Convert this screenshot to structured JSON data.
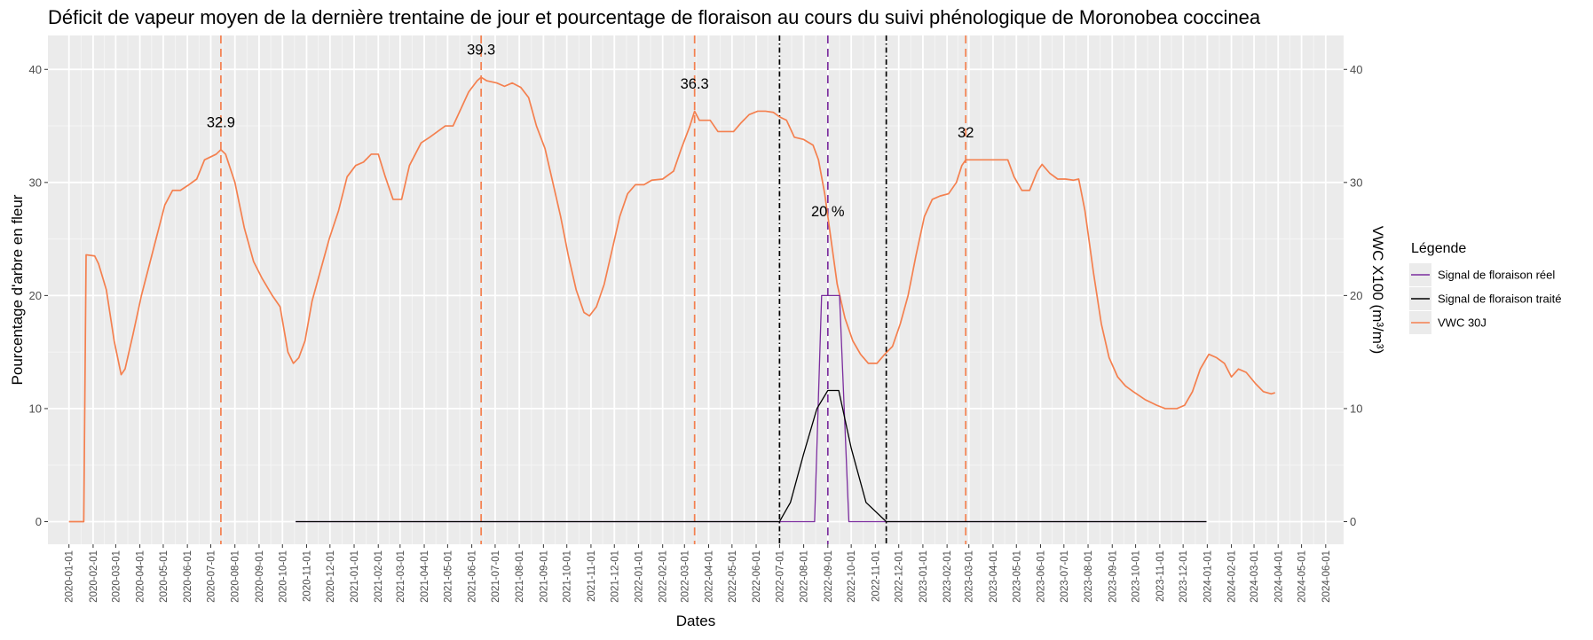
{
  "chart_data": {
    "type": "line",
    "title": "Déficit de vapeur moyen de la dernière trentaine de jour et pourcentage de floraison au cours du suivi phénologique de Moronobea coccinea",
    "xlabel": "Dates",
    "ylabel": "Pourcentage d'arbre en fleur",
    "ylabel_right": "VWC X100 (m³/m³)",
    "x_ticks": [
      "2020-01-01",
      "2020-02-01",
      "2020-03-01",
      "2020-04-01",
      "2020-05-01",
      "2020-06-01",
      "2020-07-01",
      "2020-08-01",
      "2020-09-01",
      "2020-10-01",
      "2020-11-01",
      "2020-12-01",
      "2021-01-01",
      "2021-02-01",
      "2021-03-01",
      "2021-04-01",
      "2021-05-01",
      "2021-06-01",
      "2021-07-01",
      "2021-08-01",
      "2021-09-01",
      "2021-10-01",
      "2021-11-01",
      "2021-12-01",
      "2022-01-01",
      "2022-02-01",
      "2022-03-01",
      "2022-04-01",
      "2022-05-01",
      "2022-06-01",
      "2022-07-01",
      "2022-08-01",
      "2022-09-01",
      "2022-10-01",
      "2022-11-01",
      "2022-12-01",
      "2023-01-01",
      "2023-02-01",
      "2023-03-01",
      "2023-04-01",
      "2023-05-01",
      "2023-06-01",
      "2023-07-01",
      "2023-08-01",
      "2023-09-01",
      "2023-10-01",
      "2023-11-01",
      "2023-12-01",
      "2024-01-01",
      "2024-02-01",
      "2024-03-01",
      "2024-04-01",
      "2024-05-01",
      "2024-06-01"
    ],
    "xlim": [
      "2019-12-05",
      "2024-06-24"
    ],
    "ylim": [
      -2,
      43
    ],
    "y_ticks": [
      0,
      10,
      20,
      30,
      40
    ],
    "y_right_ticks": [
      0,
      10,
      20,
      30,
      40
    ],
    "grid": true,
    "legend": {
      "title": "Légende",
      "position": "right",
      "entries": [
        {
          "name": "Signal de floraison réel",
          "color": "#7b2d9e"
        },
        {
          "name": "Signal de floraison traité",
          "color": "#000000"
        },
        {
          "name": "VWC 30J",
          "color": "#f4804f"
        }
      ]
    },
    "series": [
      {
        "name": "VWC 30J",
        "color": "#f4804f",
        "points": [
          [
            "2020-01-01",
            0
          ],
          [
            "2020-01-20",
            0
          ],
          [
            "2020-01-23",
            23.6
          ],
          [
            "2020-02-03",
            23.5
          ],
          [
            "2020-02-08",
            22.8
          ],
          [
            "2020-02-18",
            20.5
          ],
          [
            "2020-02-28",
            16
          ],
          [
            "2020-03-08",
            13
          ],
          [
            "2020-03-13",
            13.5
          ],
          [
            "2020-03-23",
            16.5
          ],
          [
            "2020-04-03",
            20
          ],
          [
            "2020-04-18",
            24
          ],
          [
            "2020-05-03",
            28
          ],
          [
            "2020-05-13",
            29.3
          ],
          [
            "2020-05-23",
            29.3
          ],
          [
            "2020-06-03",
            29.8
          ],
          [
            "2020-06-13",
            30.3
          ],
          [
            "2020-06-23",
            32
          ],
          [
            "2020-07-08",
            32.5
          ],
          [
            "2020-07-14",
            32.9
          ],
          [
            "2020-07-20",
            32.5
          ],
          [
            "2020-08-01",
            30
          ],
          [
            "2020-08-13",
            26
          ],
          [
            "2020-08-25",
            23
          ],
          [
            "2020-09-05",
            21.5
          ],
          [
            "2020-09-18",
            20
          ],
          [
            "2020-09-28",
            19
          ],
          [
            "2020-10-08",
            15
          ],
          [
            "2020-10-15",
            14
          ],
          [
            "2020-10-22",
            14.5
          ],
          [
            "2020-10-30",
            16
          ],
          [
            "2020-11-08",
            19.5
          ],
          [
            "2020-11-18",
            22
          ],
          [
            "2020-11-30",
            25
          ],
          [
            "2020-12-12",
            27.5
          ],
          [
            "2020-12-23",
            30.5
          ],
          [
            "2021-01-03",
            31.5
          ],
          [
            "2021-01-13",
            31.8
          ],
          [
            "2021-01-23",
            32.5
          ],
          [
            "2021-02-01",
            32.5
          ],
          [
            "2021-02-10",
            30.5
          ],
          [
            "2021-02-20",
            28.5
          ],
          [
            "2021-03-03",
            28.5
          ],
          [
            "2021-03-13",
            31.5
          ],
          [
            "2021-03-28",
            33.5
          ],
          [
            "2021-04-08",
            34
          ],
          [
            "2021-04-18",
            34.5
          ],
          [
            "2021-04-28",
            35
          ],
          [
            "2021-05-08",
            35
          ],
          [
            "2021-05-18",
            36.5
          ],
          [
            "2021-05-28",
            38
          ],
          [
            "2021-06-08",
            39
          ],
          [
            "2021-06-13",
            39.3
          ],
          [
            "2021-06-20",
            39
          ],
          [
            "2021-07-03",
            38.8
          ],
          [
            "2021-07-13",
            38.5
          ],
          [
            "2021-07-23",
            38.8
          ],
          [
            "2021-08-03",
            38.4
          ],
          [
            "2021-08-13",
            37.5
          ],
          [
            "2021-08-23",
            35
          ],
          [
            "2021-09-03",
            33
          ],
          [
            "2021-09-13",
            30
          ],
          [
            "2021-09-23",
            27
          ],
          [
            "2021-10-03",
            23.5
          ],
          [
            "2021-10-13",
            20.5
          ],
          [
            "2021-10-23",
            18.5
          ],
          [
            "2021-10-30",
            18.2
          ],
          [
            "2021-11-08",
            19
          ],
          [
            "2021-11-18",
            21
          ],
          [
            "2021-11-28",
            24
          ],
          [
            "2021-12-08",
            27
          ],
          [
            "2021-12-18",
            29
          ],
          [
            "2021-12-28",
            29.8
          ],
          [
            "2022-01-08",
            29.8
          ],
          [
            "2022-01-18",
            30.2
          ],
          [
            "2022-02-01",
            30.3
          ],
          [
            "2022-02-15",
            31
          ],
          [
            "2022-02-25",
            33
          ],
          [
            "2022-03-08",
            35
          ],
          [
            "2022-03-14",
            36.3
          ],
          [
            "2022-03-20",
            35.5
          ],
          [
            "2022-04-03",
            35.5
          ],
          [
            "2022-04-13",
            34.5
          ],
          [
            "2022-04-23",
            34.5
          ],
          [
            "2022-05-03",
            34.5
          ],
          [
            "2022-05-13",
            35.3
          ],
          [
            "2022-05-23",
            36
          ],
          [
            "2022-06-03",
            36.3
          ],
          [
            "2022-06-13",
            36.3
          ],
          [
            "2022-06-23",
            36.2
          ],
          [
            "2022-07-01",
            35.8
          ],
          [
            "2022-07-10",
            35.5
          ],
          [
            "2022-07-20",
            34
          ],
          [
            "2022-08-01",
            33.8
          ],
          [
            "2022-08-13",
            33.3
          ],
          [
            "2022-08-20",
            32
          ],
          [
            "2022-08-28",
            29
          ],
          [
            "2022-09-05",
            25
          ],
          [
            "2022-09-13",
            21
          ],
          [
            "2022-09-23",
            18
          ],
          [
            "2022-10-03",
            16
          ],
          [
            "2022-10-13",
            14.8
          ],
          [
            "2022-10-23",
            14
          ],
          [
            "2022-11-03",
            14
          ],
          [
            "2022-11-13",
            14.8
          ],
          [
            "2022-11-23",
            15.5
          ],
          [
            "2022-12-03",
            17.5
          ],
          [
            "2022-12-13",
            20
          ],
          [
            "2022-12-23",
            23.5
          ],
          [
            "2023-01-03",
            27
          ],
          [
            "2023-01-13",
            28.5
          ],
          [
            "2023-01-23",
            28.8
          ],
          [
            "2023-02-03",
            29
          ],
          [
            "2023-02-13",
            30
          ],
          [
            "2023-02-20",
            31.5
          ],
          [
            "2023-02-25",
            32
          ],
          [
            "2023-03-08",
            32
          ],
          [
            "2023-03-23",
            32
          ],
          [
            "2023-04-08",
            32
          ],
          [
            "2023-04-20",
            32
          ],
          [
            "2023-04-28",
            30.5
          ],
          [
            "2023-05-08",
            29.3
          ],
          [
            "2023-05-18",
            29.3
          ],
          [
            "2023-05-28",
            31
          ],
          [
            "2023-06-03",
            31.6
          ],
          [
            "2023-06-13",
            30.8
          ],
          [
            "2023-06-23",
            30.3
          ],
          [
            "2023-07-03",
            30.3
          ],
          [
            "2023-07-13",
            30.2
          ],
          [
            "2023-07-20",
            30.3
          ],
          [
            "2023-07-28",
            27.5
          ],
          [
            "2023-08-08",
            22
          ],
          [
            "2023-08-18",
            17.5
          ],
          [
            "2023-08-28",
            14.5
          ],
          [
            "2023-09-08",
            12.8
          ],
          [
            "2023-09-18",
            12
          ],
          [
            "2023-09-28",
            11.5
          ],
          [
            "2023-10-13",
            10.8
          ],
          [
            "2023-10-28",
            10.3
          ],
          [
            "2023-11-08",
            10
          ],
          [
            "2023-11-23",
            10
          ],
          [
            "2023-12-03",
            10.3
          ],
          [
            "2023-12-13",
            11.5
          ],
          [
            "2023-12-23",
            13.5
          ],
          [
            "2024-01-03",
            14.8
          ],
          [
            "2024-01-13",
            14.5
          ],
          [
            "2024-01-23",
            14
          ],
          [
            "2024-02-01",
            12.8
          ],
          [
            "2024-02-10",
            13.5
          ],
          [
            "2024-02-20",
            13.2
          ],
          [
            "2024-03-03",
            12.2
          ],
          [
            "2024-03-13",
            11.5
          ],
          [
            "2024-03-23",
            11.3
          ],
          [
            "2024-03-28",
            11.4
          ]
        ]
      },
      {
        "name": "Signal de floraison réel",
        "color": "#7b2d9e",
        "points": [
          [
            "2020-10-18",
            0
          ],
          [
            "2022-07-01",
            0
          ],
          [
            "2022-08-15",
            0
          ],
          [
            "2022-08-24",
            20
          ],
          [
            "2022-09-16",
            20
          ],
          [
            "2022-09-28",
            0
          ],
          [
            "2023-12-31",
            0
          ]
        ]
      },
      {
        "name": "Signal de floraison traité",
        "color": "#000000",
        "points": [
          [
            "2020-10-18",
            0
          ],
          [
            "2022-07-01",
            0
          ],
          [
            "2022-07-15",
            1.7
          ],
          [
            "2022-08-01",
            6
          ],
          [
            "2022-08-18",
            10
          ],
          [
            "2022-09-01",
            11.6
          ],
          [
            "2022-09-15",
            11.6
          ],
          [
            "2022-10-01",
            6.5
          ],
          [
            "2022-10-20",
            1.7
          ],
          [
            "2022-11-15",
            0
          ],
          [
            "2023-12-31",
            0
          ]
        ]
      }
    ],
    "vlines": [
      {
        "date": "2020-07-14",
        "style": "dashed",
        "color": "#f4804f"
      },
      {
        "date": "2021-06-13",
        "style": "dashed",
        "color": "#f4804f"
      },
      {
        "date": "2022-03-14",
        "style": "dashed",
        "color": "#f4804f"
      },
      {
        "date": "2022-07-01",
        "style": "dotdash",
        "color": "#000000"
      },
      {
        "date": "2022-09-01",
        "style": "dashed",
        "color": "#7b2d9e"
      },
      {
        "date": "2022-11-15",
        "style": "dotdash",
        "color": "#000000"
      },
      {
        "date": "2023-02-25",
        "style": "dashed",
        "color": "#f4804f"
      }
    ],
    "annotations": [
      {
        "text": "32.9",
        "x": "2020-07-14",
        "y": 34.9
      },
      {
        "text": "39.3",
        "x": "2021-06-13",
        "y": 41.3
      },
      {
        "text": "36.3",
        "x": "2022-03-14",
        "y": 38.3
      },
      {
        "text": "20 %",
        "x": "2022-09-01",
        "y": 27
      },
      {
        "text": "32",
        "x": "2023-02-25",
        "y": 34
      }
    ]
  }
}
